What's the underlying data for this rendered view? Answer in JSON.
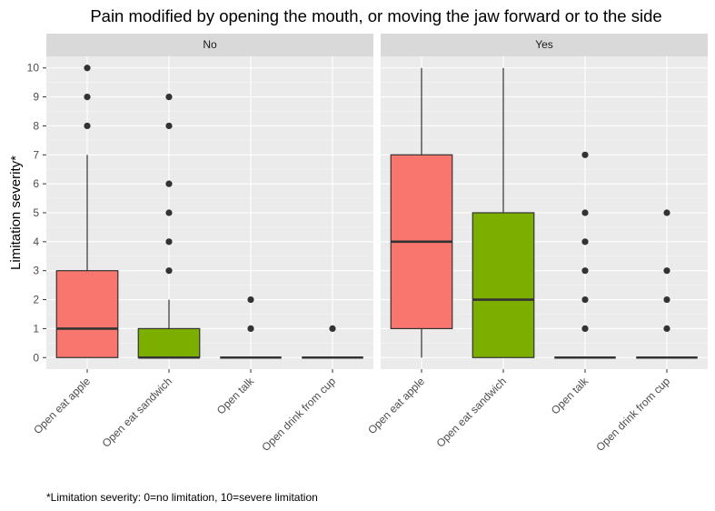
{
  "chart_data": {
    "type": "boxplot",
    "title": "Pain modified by opening the mouth, or moving the jaw forward or to the side",
    "ylabel": "Limitation severity*",
    "xlabel": "",
    "ylim": [
      -0.4,
      10.4
    ],
    "yticks": [
      0,
      1,
      2,
      3,
      4,
      5,
      6,
      7,
      8,
      9,
      10
    ],
    "grid": true,
    "legend": "none",
    "categories": [
      "Open eat apple",
      "Open eat sandwich",
      "Open talk",
      "Open drink from cup"
    ],
    "category_colors": [
      "#F8766D",
      "#7CAE00",
      "#7CAE00",
      "#7CAE00"
    ],
    "caption": "*Limitation severity: 0=no limitation, 10=severe limitation",
    "facets": [
      {
        "label": "No",
        "boxes": [
          {
            "category": "Open eat apple",
            "min": 0,
            "q1": 0,
            "median": 1,
            "q3": 3,
            "max": 7,
            "outliers": [
              8,
              9,
              10
            ]
          },
          {
            "category": "Open eat sandwich",
            "min": 0,
            "q1": 0,
            "median": 0,
            "q3": 1,
            "max": 2,
            "outliers": [
              3,
              4,
              5,
              6,
              8,
              9
            ]
          },
          {
            "category": "Open talk",
            "min": 0,
            "q1": 0,
            "median": 0,
            "q3": 0,
            "max": 0,
            "outliers": [
              1,
              2
            ]
          },
          {
            "category": "Open drink from cup",
            "min": 0,
            "q1": 0,
            "median": 0,
            "q3": 0,
            "max": 0,
            "outliers": [
              1
            ]
          }
        ]
      },
      {
        "label": "Yes",
        "boxes": [
          {
            "category": "Open eat apple",
            "min": 0,
            "q1": 1,
            "median": 4,
            "q3": 7,
            "max": 10,
            "outliers": []
          },
          {
            "category": "Open eat sandwich",
            "min": 0,
            "q1": 0,
            "median": 2,
            "q3": 5,
            "max": 10,
            "outliers": []
          },
          {
            "category": "Open talk",
            "min": 0,
            "q1": 0,
            "median": 0,
            "q3": 0,
            "max": 0,
            "outliers": [
              1,
              2,
              3,
              4,
              5,
              7
            ]
          },
          {
            "category": "Open drink from cup",
            "min": 0,
            "q1": 0,
            "median": 0,
            "q3": 0,
            "max": 0,
            "outliers": [
              1,
              2,
              3,
              5
            ]
          }
        ]
      }
    ]
  }
}
